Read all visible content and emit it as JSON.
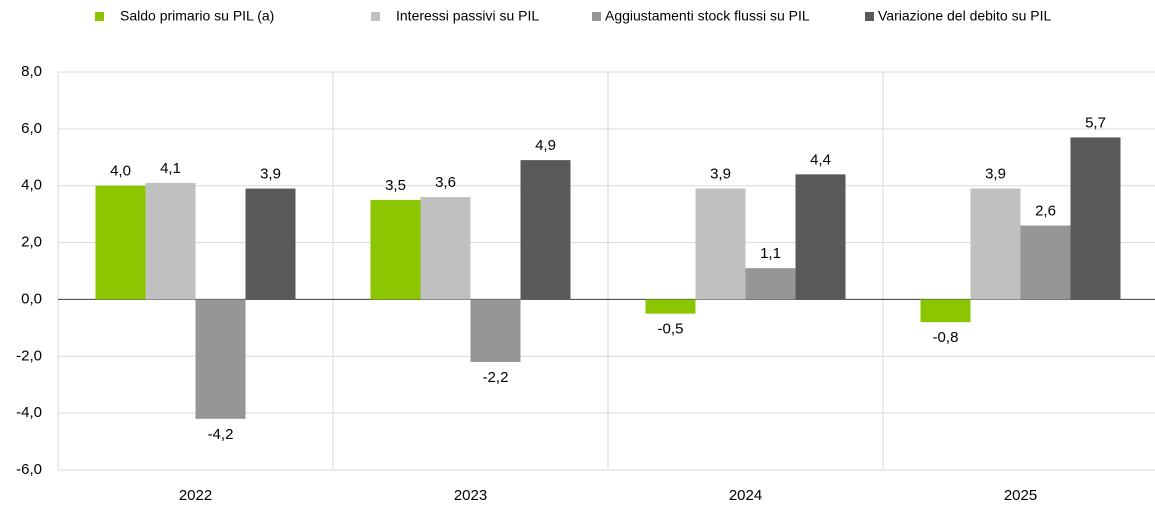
{
  "chart_data": {
    "type": "bar",
    "categories": [
      "2022",
      "2023",
      "2024",
      "2025"
    ],
    "series": [
      {
        "name": "Saldo primario su PIL (a)",
        "color": "#8cc600",
        "values": [
          4.0,
          3.5,
          -0.5,
          -0.8
        ],
        "value_labels": [
          "4,0",
          "3,5",
          "-0,5",
          "-0,8"
        ]
      },
      {
        "name": "Interessi passivi su PIL",
        "color": "#c0c0c0",
        "values": [
          4.1,
          3.6,
          3.9,
          3.9
        ],
        "value_labels": [
          "4,1",
          "3,6",
          "3,9",
          "3,9"
        ]
      },
      {
        "name": "Aggiustamenti stock flussi su PIL",
        "color": "#969696",
        "values": [
          -4.2,
          -2.2,
          1.1,
          2.6
        ],
        "value_labels": [
          "-4,2",
          "-2,2",
          "1,1",
          "2,6"
        ]
      },
      {
        "name": "Variazione del debito su PIL",
        "color": "#595959",
        "values": [
          3.9,
          4.9,
          4.4,
          5.7
        ],
        "value_labels": [
          "3,9",
          "4,9",
          "4,4",
          "5,7"
        ]
      }
    ],
    "ylim": [
      -6,
      8
    ],
    "yticks": [
      {
        "value": -6,
        "label": "-6,0"
      },
      {
        "value": -4,
        "label": "-4,0"
      },
      {
        "value": -2,
        "label": "-2,0"
      },
      {
        "value": 0,
        "label": "0,0"
      },
      {
        "value": 2,
        "label": "2,0"
      },
      {
        "value": 4,
        "label": "4,0"
      },
      {
        "value": 6,
        "label": "6,0"
      },
      {
        "value": 8,
        "label": "8,0"
      }
    ],
    "grid": true,
    "legend": "top"
  }
}
